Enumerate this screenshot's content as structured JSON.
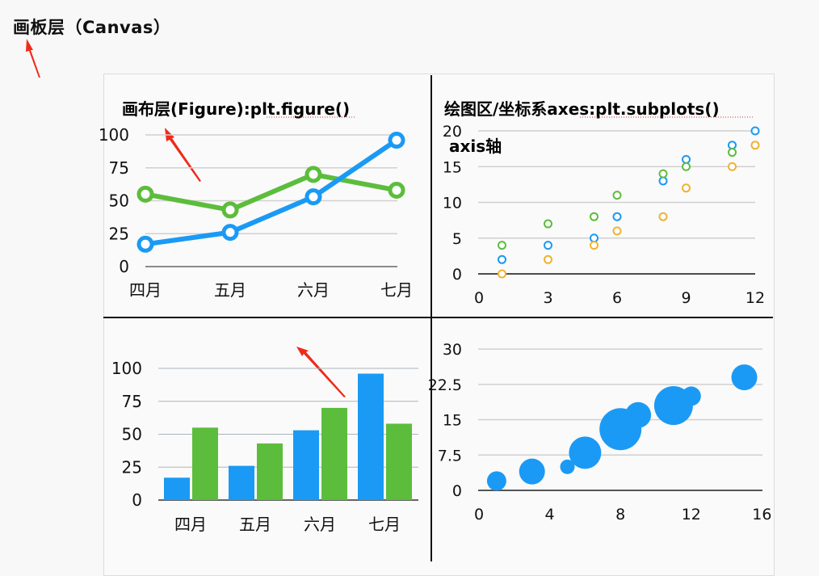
{
  "canvas_label": "画板层（Canvas）",
  "figure_label": "画布层(Figure):plt.figure()",
  "axes_label": "绘图区/坐标系axes:plt.subplots()",
  "axis_label": "axis轴",
  "colors": {
    "blue": "#1a9af5",
    "green": "#5cbd3c",
    "orange": "#f0b232",
    "arrow": "#f02a1a",
    "grid": "#d0d0d0"
  },
  "chart_data": [
    {
      "type": "line",
      "title": "",
      "categories": [
        "四月",
        "五月",
        "六月",
        "七月"
      ],
      "series": [
        {
          "name": "blue",
          "values": [
            17,
            26,
            53,
            96
          ]
        },
        {
          "name": "green",
          "values": [
            55,
            43,
            70,
            58
          ]
        }
      ],
      "yticks": [
        "0",
        "25",
        "50",
        "75",
        "100"
      ],
      "ylim": [
        0,
        100
      ],
      "grid": true
    },
    {
      "type": "scatter",
      "title": "",
      "series": [
        {
          "name": "blue",
          "x": [
            1,
            3,
            5,
            6,
            8,
            9,
            11,
            12
          ],
          "y": [
            2,
            4,
            5,
            8,
            13,
            16,
            18,
            20
          ]
        },
        {
          "name": "green",
          "x": [
            1,
            3,
            5,
            6,
            8,
            9,
            11
          ],
          "y": [
            4,
            7,
            8,
            11,
            14,
            15,
            17
          ]
        },
        {
          "name": "orange",
          "x": [
            1,
            3,
            5,
            6,
            8,
            9,
            11,
            12
          ],
          "y": [
            0,
            2,
            4,
            6,
            8,
            12,
            15,
            18
          ]
        }
      ],
      "xticks": [
        "0",
        "3",
        "6",
        "9",
        "12"
      ],
      "yticks": [
        "0",
        "5",
        "10",
        "15",
        "20"
      ],
      "xlim": [
        0,
        12
      ],
      "ylim": [
        0,
        20
      ],
      "grid": true
    },
    {
      "type": "bar",
      "title": "",
      "categories": [
        "四月",
        "五月",
        "六月",
        "七月"
      ],
      "series": [
        {
          "name": "blue",
          "values": [
            17,
            26,
            53,
            96
          ]
        },
        {
          "name": "green",
          "values": [
            55,
            43,
            70,
            58
          ]
        }
      ],
      "yticks": [
        "0",
        "25",
        "50",
        "75",
        "100"
      ],
      "ylim": [
        0,
        100
      ],
      "grid": true
    },
    {
      "type": "scatter",
      "subtype": "bubble",
      "title": "",
      "series": [
        {
          "name": "blue",
          "x": [
            1,
            3,
            5,
            6,
            8,
            9,
            11,
            12,
            15
          ],
          "y": [
            2,
            4,
            5,
            8,
            13,
            16,
            18,
            20,
            24
          ],
          "size": [
            12,
            16,
            9,
            20,
            26,
            16,
            24,
            12,
            16
          ]
        }
      ],
      "xticks": [
        "0",
        "4",
        "8",
        "12",
        "16"
      ],
      "yticks": [
        "0",
        "7.5",
        "15",
        "22.5",
        "30"
      ],
      "xlim": [
        0,
        16
      ],
      "ylim": [
        0,
        30
      ],
      "grid": true
    }
  ]
}
